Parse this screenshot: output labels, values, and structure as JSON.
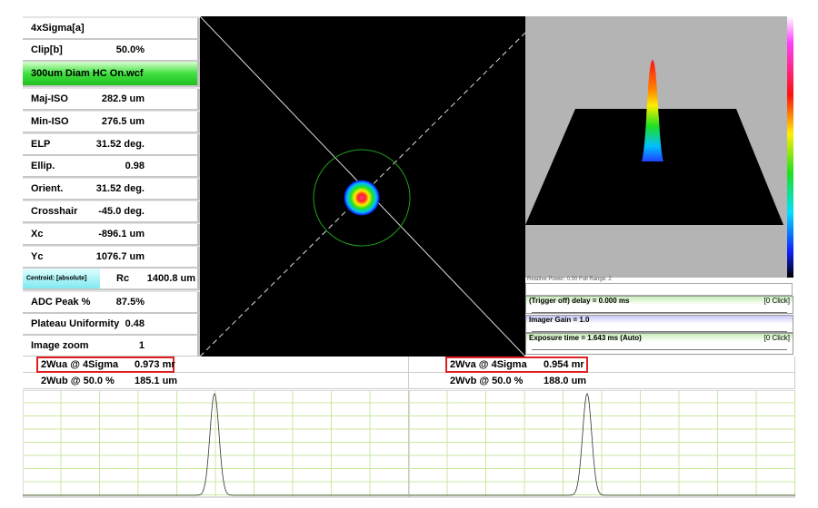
{
  "left_panel": {
    "rows": [
      {
        "label": "4xSigma[a]"
      },
      {
        "label": "Clip[b]",
        "value": "50.0%"
      },
      {
        "label": "300um Diam HC On.wcf"
      },
      {
        "label": "Maj-ISO",
        "value": "282.9 um"
      },
      {
        "label": "Min-ISO",
        "value": "276.5 um"
      },
      {
        "label": "ELP",
        "value": "31.52 deg."
      },
      {
        "label": "Ellip.",
        "value": "0.98"
      },
      {
        "label": "Orient.",
        "value": "31.52 deg."
      },
      {
        "label": "Crosshair",
        "value": "-45.0 deg."
      },
      {
        "label": "Xc",
        "value": "-896.1 um"
      },
      {
        "label": "Yc",
        "value": "1076.7 um"
      },
      {
        "label": "Centroid: [absolute]",
        "sublabel": "Rc",
        "value": "1400.8 um"
      },
      {
        "label": "ADC Peak %",
        "value": "87.5%"
      },
      {
        "label": "Plateau Uniformity",
        "value": "0.48"
      },
      {
        "label": "Image zoom",
        "value": "1"
      }
    ]
  },
  "controls": {
    "status": "Relative Power: 0.00     Full Range: 2",
    "items": [
      {
        "label": "(Trigger off) delay = 0.000 ms",
        "button": "[0 Click]"
      },
      {
        "label": "Imager Gain = 1.0"
      },
      {
        "label": "Exposure time = 1.643 ms (Auto)",
        "button": "[0 Click]"
      }
    ]
  },
  "measurements": {
    "left": [
      {
        "label": "2Wua @ 4Sigma",
        "value": "0.973 mr"
      },
      {
        "label": "2Wub @ 50.0 %",
        "value": "185.1 um"
      }
    ],
    "right": [
      {
        "label": "2Wva @ 4Sigma",
        "value": "0.954 mr"
      },
      {
        "label": "2Wvb @ 50.0 %",
        "value": "188.0 um"
      }
    ]
  }
}
